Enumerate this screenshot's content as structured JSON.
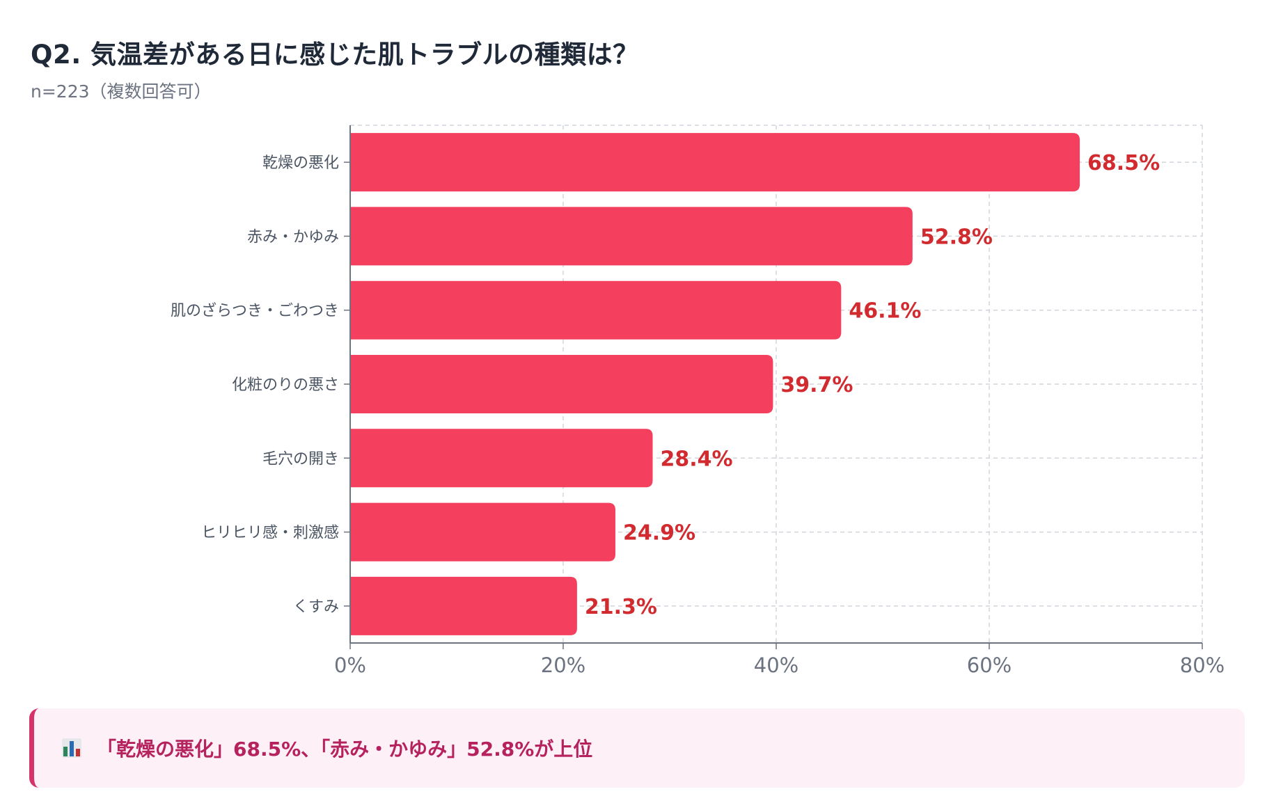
{
  "header": {
    "title": "Q2. 気温差がある日に感じた肌トラブルの種類は？",
    "subtitle": "n=223（複数回答可）"
  },
  "chart_data": {
    "type": "bar",
    "orientation": "horizontal",
    "categories": [
      "乾燥の悪化",
      "赤み・かゆみ",
      "肌のざらつき・ごわつき",
      "化粧のりの悪さ",
      "毛穴の開き",
      "ヒリヒリ感・刺激感",
      "くすみ"
    ],
    "values": [
      68.5,
      52.8,
      46.1,
      39.7,
      28.4,
      24.9,
      21.3
    ],
    "value_labels": [
      "68.5%",
      "52.8%",
      "46.1%",
      "39.7%",
      "28.4%",
      "24.9%",
      "21.3%"
    ],
    "xlim": [
      0,
      80
    ],
    "x_ticks": [
      0,
      20,
      40,
      60,
      80
    ],
    "x_tick_labels": [
      "0%",
      "20%",
      "40%",
      "60%",
      "80%"
    ],
    "grid": true,
    "bar_color": "#f43f5e",
    "value_label_color": "#d12b2f"
  },
  "summary": {
    "icon": "bar-chart-icon",
    "text": "「乾燥の悪化」68.5%、「赤み・かゆみ」52.8%が上位"
  }
}
